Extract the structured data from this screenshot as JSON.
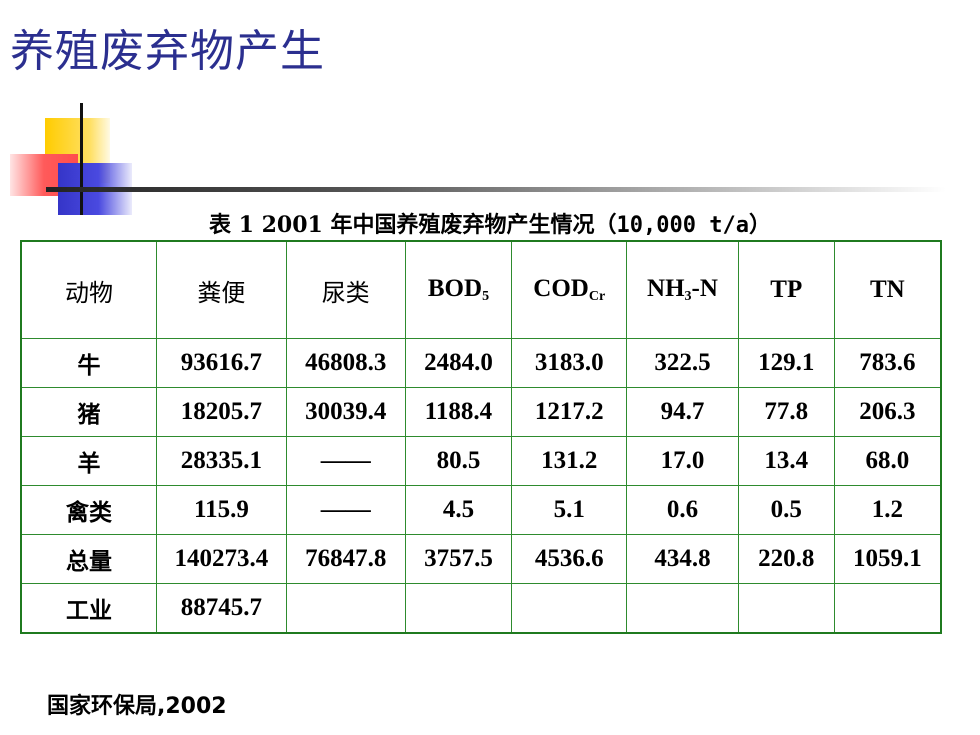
{
  "title": "养殖废弃物产生",
  "caption": {
    "prefix": "表 1   2001 年中国养殖废弃物产生情况",
    "unit": "（10,000 t/a）"
  },
  "table": {
    "headers": [
      {
        "text": "动物",
        "sub": "",
        "tail": ""
      },
      {
        "text": "粪便",
        "sub": "",
        "tail": ""
      },
      {
        "text": "尿类",
        "sub": "",
        "tail": ""
      },
      {
        "text": "BOD",
        "sub": "5",
        "tail": ""
      },
      {
        "text": "COD",
        "sub": "Cr",
        "tail": ""
      },
      {
        "text": "NH",
        "sub": "3",
        "tail": "-N"
      },
      {
        "text": "TP",
        "sub": "",
        "tail": ""
      },
      {
        "text": "TN",
        "sub": "",
        "tail": ""
      }
    ],
    "rows": [
      [
        "牛",
        "93616.7",
        "46808.3",
        "2484.0",
        "3183.0",
        "322.5",
        "129.1",
        "783.6"
      ],
      [
        "猪",
        "18205.7",
        "30039.4",
        "1188.4",
        "1217.2",
        "94.7",
        "77.8",
        "206.3"
      ],
      [
        "羊",
        "28335.1",
        "——",
        "80.5",
        "131.2",
        "17.0",
        "13.4",
        "68.0"
      ],
      [
        "禽类",
        "115.9",
        "——",
        "4.5",
        "5.1",
        "0.6",
        "0.5",
        "1.2"
      ],
      [
        "总量",
        "140273.4",
        "76847.8",
        "3757.5",
        "4536.6",
        "434.8",
        "220.8",
        "1059.1"
      ],
      [
        "工业",
        "88745.7",
        "",
        "",
        "",
        "",
        "",
        ""
      ]
    ]
  },
  "source": "国家环保局,2002",
  "colors": {
    "title": "#2b2f8f",
    "table_border": "#2e8b2e"
  }
}
